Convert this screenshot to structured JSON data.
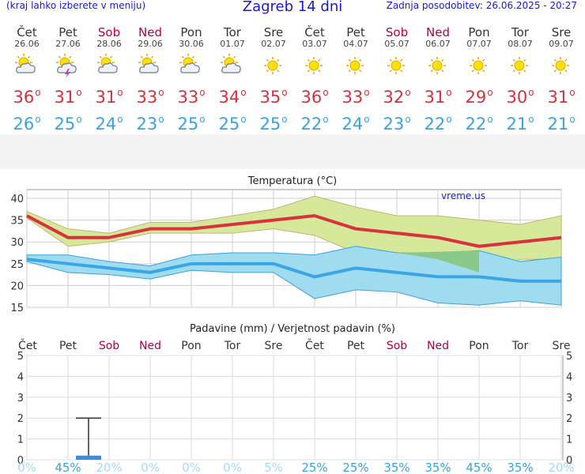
{
  "header": {
    "menu_hint": "(kraj lahko izberete v meniju)",
    "title": "Zagreb 14 dni",
    "updated": "Zadnja posodobitev: 26.06.2025 - 20:27"
  },
  "days": [
    {
      "name": "Čet",
      "date": "26.06",
      "weekend": false,
      "icon": "sun-cloud-icon",
      "tmax": "36",
      "tmin": "26",
      "rain_pct": "0%"
    },
    {
      "name": "Pet",
      "date": "27.06",
      "weekend": false,
      "icon": "thunderstorm-icon",
      "tmax": "31",
      "tmin": "25",
      "rain_pct": "45%"
    },
    {
      "name": "Sob",
      "date": "28.06",
      "weekend": true,
      "icon": "sun-cloud-icon",
      "tmax": "31",
      "tmin": "24",
      "rain_pct": "20%"
    },
    {
      "name": "Ned",
      "date": "29.06",
      "weekend": true,
      "icon": "sun-cloud-icon",
      "tmax": "33",
      "tmin": "23",
      "rain_pct": "0%"
    },
    {
      "name": "Pon",
      "date": "30.06",
      "weekend": false,
      "icon": "sun-cloud-icon",
      "tmax": "33",
      "tmin": "25",
      "rain_pct": "0%"
    },
    {
      "name": "Tor",
      "date": "01.07",
      "weekend": false,
      "icon": "sun-cloud-icon",
      "tmax": "34",
      "tmin": "25",
      "rain_pct": "0%"
    },
    {
      "name": "Sre",
      "date": "02.07",
      "weekend": false,
      "icon": "sun-icon",
      "tmax": "35",
      "tmin": "25",
      "rain_pct": "5%"
    },
    {
      "name": "Čet",
      "date": "03.07",
      "weekend": false,
      "icon": "sun-icon",
      "tmax": "36",
      "tmin": "22",
      "rain_pct": "25%"
    },
    {
      "name": "Pet",
      "date": "04.07",
      "weekend": false,
      "icon": "sun-icon",
      "tmax": "33",
      "tmin": "24",
      "rain_pct": "25%"
    },
    {
      "name": "Sob",
      "date": "05.07",
      "weekend": true,
      "icon": "sun-icon",
      "tmax": "32",
      "tmin": "23",
      "rain_pct": "35%"
    },
    {
      "name": "Ned",
      "date": "06.07",
      "weekend": true,
      "icon": "sun-icon",
      "tmax": "31",
      "tmin": "22",
      "rain_pct": "35%"
    },
    {
      "name": "Pon",
      "date": "07.07",
      "weekend": false,
      "icon": "sun-icon",
      "tmax": "29",
      "tmin": "22",
      "rain_pct": "45%"
    },
    {
      "name": "Tor",
      "date": "08.07",
      "weekend": false,
      "icon": "sun-icon",
      "tmax": "30",
      "tmin": "21",
      "rain_pct": "35%"
    },
    {
      "name": "Sre",
      "date": "09.07",
      "weekend": false,
      "icon": "sun-icon",
      "tmax": "31",
      "tmin": "21",
      "rain_pct": "20%"
    }
  ],
  "colors": {
    "max": "#d3313d",
    "min": "#36a3e0",
    "weekend": "#b0004b",
    "pct": "#36a3e0",
    "pct_light": "#a8d8f0"
  },
  "chart_data": [
    {
      "type": "line",
      "title": "Temperatura (°C)",
      "watermark": "vreme.us",
      "categories": [
        "26.06",
        "27.06",
        "28.06",
        "29.06",
        "30.06",
        "01.07",
        "02.07",
        "03.07",
        "04.07",
        "05.07",
        "06.07",
        "07.07",
        "08.07",
        "09.07"
      ],
      "ylim": [
        15,
        42
      ],
      "yticks": [
        15,
        20,
        25,
        30,
        35,
        40
      ],
      "series": [
        {
          "values": [
            36,
            31,
            31,
            33,
            33,
            34,
            35,
            36,
            33,
            32,
            31,
            29,
            30,
            31
          ]
        },
        {
          "values": [
            26,
            25,
            24,
            23,
            25,
            25,
            25,
            22,
            24,
            23,
            22,
            22,
            21,
            21
          ]
        }
      ],
      "max_band": {
        "high": [
          37,
          33,
          32,
          34.5,
          34.5,
          36,
          37.5,
          40.5,
          38,
          36,
          36,
          35,
          34,
          36
        ],
        "low": [
          35.5,
          29,
          30,
          32,
          32,
          32,
          33,
          31.5,
          27.5,
          27,
          26,
          23,
          26,
          26
        ]
      },
      "min_band": {
        "high": [
          27,
          27,
          25.5,
          24.5,
          27,
          27.5,
          27.5,
          27,
          29,
          27.5,
          27.5,
          28,
          25.5,
          26.5
        ],
        "low": [
          25.5,
          23,
          22.5,
          21.5,
          23.5,
          23,
          23,
          17,
          19,
          18.5,
          16,
          15.5,
          16.5,
          15.5
        ]
      },
      "grid": true
    },
    {
      "type": "bar",
      "title": "Padavine (mm) / Verjetnost padavin (%)",
      "categories": [
        "26.06",
        "27.06",
        "28.06",
        "29.06",
        "30.06",
        "01.07",
        "02.07",
        "03.07",
        "04.07",
        "05.07",
        "06.07",
        "07.07",
        "08.07",
        "09.07"
      ],
      "values": [
        0,
        0.2,
        0,
        0,
        0,
        0,
        0,
        0,
        0,
        0,
        0,
        0,
        0,
        0
      ],
      "error_high": [
        0,
        2,
        0,
        0,
        0,
        0,
        0,
        0,
        0,
        0,
        0,
        0,
        0,
        0
      ],
      "ylim": [
        0,
        5
      ],
      "yticks": [
        0,
        1,
        2,
        3,
        4,
        5
      ],
      "grid": true
    }
  ]
}
